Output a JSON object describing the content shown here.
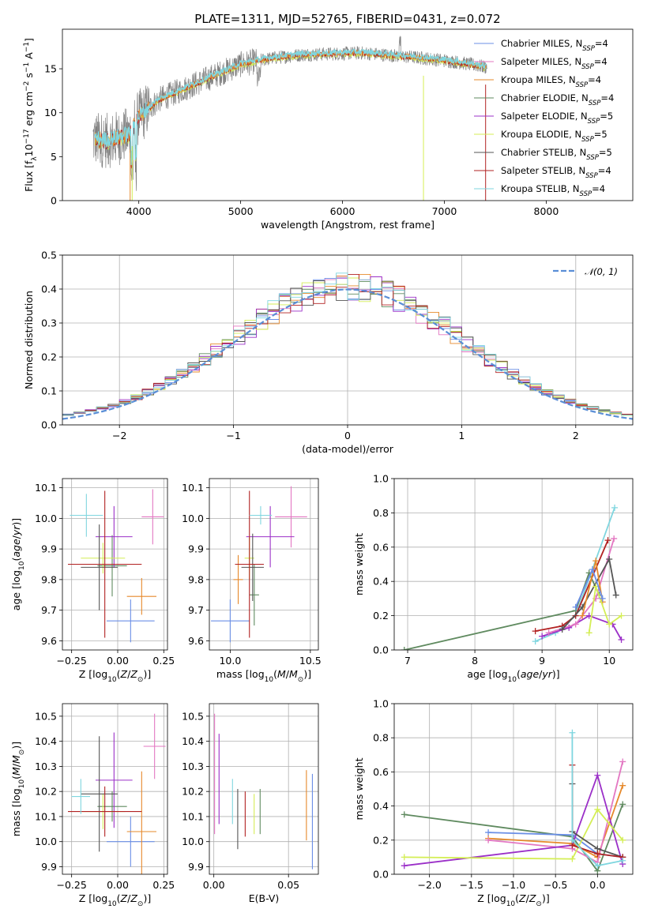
{
  "figure": {
    "title": "PLATE=1311, MJD=52765, FIBERID=0431, z=0.072"
  },
  "colors": {
    "chabrier_miles": "#6b8fe6",
    "salpeter_miles": "#e377c2",
    "kroupa_miles": "#e6892b",
    "chabrier_elodie": "#5f8a5f",
    "salpeter_elodie": "#9b30c8",
    "kroupa_elodie": "#d4ee55",
    "chabrier_stelib": "#555555",
    "salpeter_stelib": "#b22222",
    "kroupa_stelib": "#7fd6df",
    "normal_curve": "#5a8ed6"
  },
  "legend_spectrum": [
    {
      "label": "Chabrier MILES, N",
      "sub": "SSP",
      "suffix": "=4",
      "color_key": "chabrier_miles"
    },
    {
      "label": "Salpeter MILES, N",
      "sub": "SSP",
      "suffix": "=4",
      "color_key": "salpeter_miles"
    },
    {
      "label": "Kroupa MILES, N",
      "sub": "SSP",
      "suffix": "=4",
      "color_key": "kroupa_miles"
    },
    {
      "label": "Chabrier ELODIE, N",
      "sub": "SSP",
      "suffix": "=4",
      "color_key": "chabrier_elodie"
    },
    {
      "label": "Salpeter ELODIE, N",
      "sub": "SSP",
      "suffix": "=5",
      "color_key": "salpeter_elodie"
    },
    {
      "label": "Kroupa ELODIE, N",
      "sub": "SSP",
      "suffix": "=5",
      "color_key": "kroupa_elodie"
    },
    {
      "label": "Chabrier STELIB, N",
      "sub": "SSP",
      "suffix": "=5",
      "color_key": "chabrier_stelib"
    },
    {
      "label": "Salpeter STELIB, N",
      "sub": "SSP",
      "suffix": "=4",
      "color_key": "salpeter_stelib"
    },
    {
      "label": "Kroupa STELIB, N",
      "sub": "SSP",
      "suffix": "=4",
      "color_key": "kroupa_stelib"
    }
  ],
  "chart_data": [
    {
      "id": "spectrum",
      "type": "line",
      "xlabel": "wavelength [Angstrom, rest frame]",
      "ylabel": "Flux [f_λ10^-17 erg cm^-2 s^-1 A^-1]",
      "xlim": [
        3250,
        8850
      ],
      "ylim": [
        0,
        19.5
      ],
      "xticks": [
        4000,
        5000,
        6000,
        7000,
        8000
      ],
      "yticks": [
        0,
        5,
        10,
        15
      ],
      "grid": false,
      "legend": "upper right",
      "continuum_x": [
        3550,
        3700,
        3900,
        4000,
        4200,
        4500,
        4800,
        5000,
        5300,
        5600,
        5900,
        6200,
        6500,
        6800,
        7100,
        7400
      ],
      "continuum_y": [
        7.0,
        6.8,
        7.5,
        9.5,
        11.5,
        13.0,
        14.5,
        15.5,
        16.2,
        16.6,
        16.7,
        16.8,
        16.5,
        16.2,
        15.8,
        15.2
      ],
      "data_x_range": [
        3550,
        7420
      ],
      "notch_lines": [
        {
          "x": 3915,
          "color_key": "kroupa_miles"
        },
        {
          "x": 3935,
          "color_key": "kroupa_elodie"
        },
        {
          "x": 6795,
          "color_key": "kroupa_elodie"
        },
        {
          "x": 7405,
          "color_key": "salpeter_stelib"
        }
      ]
    },
    {
      "id": "residuals",
      "type": "histogram",
      "xlabel": "(data-model)/error",
      "ylabel": "Normed distribution",
      "xlim": [
        -2.5,
        2.5
      ],
      "ylim": [
        0,
        0.5
      ],
      "xticks": [
        -2,
        -1,
        0,
        1,
        2
      ],
      "yticks": [
        0.0,
        0.1,
        0.2,
        0.3,
        0.4,
        0.5
      ],
      "bin_width": 0.1,
      "grid": true,
      "legend": "upper right",
      "curve_label": "𝒩(0, 1)",
      "series_keys": [
        "chabrier_miles",
        "salpeter_miles",
        "kroupa_miles",
        "chabrier_elodie",
        "salpeter_elodie",
        "kroupa_elodie",
        "chabrier_stelib",
        "salpeter_stelib",
        "kroupa_stelib"
      ]
    },
    {
      "id": "z_age",
      "type": "errorbar",
      "xlabel": "Z [log10(Z/Z⊙)]",
      "ylabel": "age  [log10(age/yr)]",
      "xlim": [
        -0.3,
        0.27
      ],
      "ylim": [
        9.57,
        10.13
      ],
      "xticks": [
        -0.25,
        0.0,
        0.25
      ],
      "xtick_labels": [
        "−0.25",
        "0.00",
        "0.25"
      ],
      "yticks": [
        9.6,
        9.7,
        9.8,
        9.9,
        10.0,
        10.1
      ],
      "grid": true,
      "points": [
        {
          "key": "chabrier_miles",
          "x": 0.07,
          "xerr": 0.13,
          "y": 9.665,
          "yerr": 0.07
        },
        {
          "key": "salpeter_miles",
          "x": 0.19,
          "xerr": 0.06,
          "y": 10.005,
          "yerr": 0.09
        },
        {
          "key": "kroupa_miles",
          "x": 0.13,
          "xerr": 0.08,
          "y": 9.745,
          "yerr": 0.06
        },
        {
          "key": "chabrier_elodie",
          "x": -0.03,
          "xerr": 0.08,
          "y": 9.845,
          "yerr": 0.1
        },
        {
          "key": "salpeter_elodie",
          "x": -0.02,
          "xerr": 0.1,
          "y": 9.94,
          "yerr": 0.1
        },
        {
          "key": "kroupa_elodie",
          "x": -0.08,
          "xerr": 0.12,
          "y": 9.87,
          "yerr": 0.05
        },
        {
          "key": "chabrier_stelib",
          "x": -0.1,
          "xerr": 0.1,
          "y": 9.84,
          "yerr": 0.14
        },
        {
          "key": "salpeter_stelib",
          "x": -0.07,
          "xerr": 0.2,
          "y": 9.85,
          "yerr": 0.24
        },
        {
          "key": "kroupa_stelib",
          "x": -0.17,
          "xerr": 0.09,
          "y": 10.01,
          "yerr": 0.07
        }
      ]
    },
    {
      "id": "mass_age",
      "type": "errorbar",
      "xlabel": "mass [log10(M/M⊙)]",
      "ylabel": "",
      "xlim": [
        9.87,
        10.55
      ],
      "ylim": [
        9.57,
        10.13
      ],
      "xticks": [
        10.0,
        10.5
      ],
      "xtick_labels": [
        "10.0",
        "10.5"
      ],
      "yticks": [
        9.6,
        9.7,
        9.8,
        9.9,
        10.0,
        10.1
      ],
      "grid": true,
      "points": [
        {
          "key": "chabrier_miles",
          "x": 10.0,
          "xerr": 0.12,
          "y": 9.665,
          "yerr": 0.07
        },
        {
          "key": "salpeter_miles",
          "x": 10.38,
          "xerr": 0.1,
          "y": 10.005,
          "yerr": 0.1
        },
        {
          "key": "kroupa_miles",
          "x": 10.05,
          "xerr": 0.03,
          "y": 9.8,
          "yerr": 0.08
        },
        {
          "key": "chabrier_elodie",
          "x": 10.15,
          "xerr": 0.03,
          "y": 9.75,
          "yerr": 0.1
        },
        {
          "key": "salpeter_elodie",
          "x": 10.25,
          "xerr": 0.15,
          "y": 9.94,
          "yerr": 0.1
        },
        {
          "key": "kroupa_elodie",
          "x": 10.12,
          "xerr": 0.03,
          "y": 9.87,
          "yerr": 0.07
        },
        {
          "key": "chabrier_stelib",
          "x": 10.14,
          "xerr": 0.07,
          "y": 9.84,
          "yerr": 0.11
        },
        {
          "key": "salpeter_stelib",
          "x": 10.12,
          "xerr": 0.09,
          "y": 9.85,
          "yerr": 0.24
        },
        {
          "key": "kroupa_stelib",
          "x": 10.19,
          "xerr": 0.07,
          "y": 10.01,
          "yerr": 0.03
        }
      ]
    },
    {
      "id": "age_weight",
      "type": "line",
      "xlabel": "age  [log10(age/yr)]",
      "ylabel": "mass weight",
      "xlim": [
        6.8,
        10.35
      ],
      "ylim": [
        0,
        1.0
      ],
      "xticks": [
        7,
        8,
        9,
        10
      ],
      "yticks": [
        0.0,
        0.2,
        0.4,
        0.6,
        0.8,
        1.0
      ],
      "grid": true,
      "series": [
        {
          "key": "chabrier_elodie",
          "x": [
            6.95,
            9.5,
            9.7,
            9.85
          ],
          "y": [
            0.0,
            0.23,
            0.45,
            0.32
          ]
        },
        {
          "key": "kroupa_stelib",
          "x": [
            8.9,
            9.2,
            9.5,
            10.08
          ],
          "y": [
            0.05,
            0.1,
            0.2,
            0.83
          ]
        },
        {
          "key": "salpeter_stelib",
          "x": [
            8.9,
            9.3,
            9.5,
            9.98
          ],
          "y": [
            0.11,
            0.14,
            0.2,
            0.64
          ]
        },
        {
          "key": "salpeter_elodie",
          "x": [
            9.0,
            9.4,
            9.7,
            10.05,
            10.18
          ],
          "y": [
            0.08,
            0.13,
            0.2,
            0.15,
            0.06
          ]
        },
        {
          "key": "salpeter_miles",
          "x": [
            9.1,
            9.5,
            9.8,
            10.07
          ],
          "y": [
            0.1,
            0.15,
            0.3,
            0.65
          ]
        },
        {
          "key": "chabrier_stelib",
          "x": [
            9.3,
            9.6,
            10.0,
            10.1
          ],
          "y": [
            0.12,
            0.25,
            0.53,
            0.32
          ]
        },
        {
          "key": "kroupa_miles",
          "x": [
            9.6,
            9.8,
            9.9
          ],
          "y": [
            0.2,
            0.52,
            0.28
          ]
        },
        {
          "key": "kroupa_elodie",
          "x": [
            9.7,
            9.8,
            10.0,
            10.18
          ],
          "y": [
            0.1,
            0.37,
            0.15,
            0.2
          ]
        },
        {
          "key": "chabrier_miles",
          "x": [
            9.5,
            9.75,
            9.9
          ],
          "y": [
            0.25,
            0.47,
            0.3
          ]
        }
      ]
    },
    {
      "id": "z_mass",
      "type": "errorbar",
      "xlabel": "Z [log10(Z/Z⊙)]",
      "ylabel": "mass [log10(M/M⊙)]",
      "xlim": [
        -0.3,
        0.27
      ],
      "ylim": [
        9.87,
        10.55
      ],
      "xticks": [
        -0.25,
        0.0,
        0.25
      ],
      "xtick_labels": [
        "−0.25",
        "0.00",
        "0.25"
      ],
      "yticks": [
        9.9,
        10.0,
        10.1,
        10.2,
        10.3,
        10.4,
        10.5
      ],
      "grid": true,
      "points": [
        {
          "key": "chabrier_miles",
          "x": 0.07,
          "xerr": 0.13,
          "y": 10.0,
          "yerr": 0.1
        },
        {
          "key": "salpeter_miles",
          "x": 0.2,
          "xerr": 0.06,
          "y": 10.38,
          "yerr": 0.13
        },
        {
          "key": "kroupa_miles",
          "x": 0.13,
          "xerr": 0.08,
          "y": 10.04,
          "yerr": 0.24
        },
        {
          "key": "chabrier_elodie",
          "x": -0.03,
          "xerr": 0.08,
          "y": 10.14,
          "yerr": 0.06
        },
        {
          "key": "salpeter_elodie",
          "x": -0.02,
          "xerr": 0.1,
          "y": 10.245,
          "yerr": 0.19
        },
        {
          "key": "kroupa_elodie",
          "x": -0.08,
          "xerr": 0.12,
          "y": 10.12,
          "yerr": 0.07
        },
        {
          "key": "chabrier_stelib",
          "x": -0.1,
          "xerr": 0.1,
          "y": 10.19,
          "yerr": 0.23
        },
        {
          "key": "salpeter_stelib",
          "x": -0.07,
          "xerr": 0.2,
          "y": 10.12,
          "yerr": 0.1
        },
        {
          "key": "kroupa_stelib",
          "x": -0.2,
          "xerr": 0.05,
          "y": 10.18,
          "yerr": 0.07
        }
      ]
    },
    {
      "id": "ebv_mass",
      "type": "errorbar",
      "xlabel": "E(B-V)",
      "ylabel": "",
      "xlim": [
        -0.003,
        0.07
      ],
      "ylim": [
        9.87,
        10.55
      ],
      "xticks": [
        0.0,
        0.05
      ],
      "xtick_labels": [
        "0.00",
        "0.05"
      ],
      "yticks": [
        9.9,
        10.0,
        10.1,
        10.2,
        10.3,
        10.4,
        10.5
      ],
      "grid": true,
      "points": [
        {
          "key": "chabrier_miles",
          "x": 0.066,
          "xerr": 0,
          "y": 10.08,
          "yerr": 0.19
        },
        {
          "key": "salpeter_miles",
          "x": 0.0005,
          "xerr": 0,
          "y": 10.27,
          "yerr": 0.24
        },
        {
          "key": "kroupa_miles",
          "x": 0.062,
          "xerr": 0,
          "y": 10.145,
          "yerr": 0.14
        },
        {
          "key": "chabrier_elodie",
          "x": 0.031,
          "xerr": 0,
          "y": 10.12,
          "yerr": 0.09
        },
        {
          "key": "salpeter_elodie",
          "x": 0.0035,
          "xerr": 0,
          "y": 10.25,
          "yerr": 0.18
        },
        {
          "key": "kroupa_elodie",
          "x": 0.027,
          "xerr": 0,
          "y": 10.11,
          "yerr": 0.08
        },
        {
          "key": "chabrier_stelib",
          "x": 0.016,
          "xerr": 0,
          "y": 10.09,
          "yerr": 0.12
        },
        {
          "key": "salpeter_stelib",
          "x": 0.021,
          "xerr": 0,
          "y": 10.11,
          "yerr": 0.09
        },
        {
          "key": "kroupa_stelib",
          "x": 0.0125,
          "xerr": 0,
          "y": 10.16,
          "yerr": 0.09
        }
      ]
    },
    {
      "id": "z_weight",
      "type": "line",
      "xlabel": "Z [log10(Z/Z⊙)]",
      "ylabel": "mass weight",
      "xlim": [
        -2.42,
        0.42
      ],
      "ylim": [
        0,
        1.0
      ],
      "xticks": [
        -2.0,
        -1.5,
        -1.0,
        -0.5,
        0.0
      ],
      "xtick_labels": [
        "−2.0",
        "−1.5",
        "−1.0",
        "−0.5",
        "0.0"
      ],
      "yticks": [
        0.0,
        0.2,
        0.4,
        0.6,
        0.8,
        1.0
      ],
      "grid": true,
      "series": [
        {
          "key": "chabrier_elodie",
          "x": [
            -2.3,
            -0.3,
            0.0,
            0.3
          ],
          "y": [
            0.35,
            0.22,
            0.02,
            0.41
          ]
        },
        {
          "key": "chabrier_miles",
          "x": [
            -1.3,
            -0.3,
            0.0,
            0.3
          ],
          "y": [
            0.245,
            0.23,
            0.12,
            0.1
          ]
        },
        {
          "key": "kroupa_miles",
          "x": [
            -1.3,
            -0.3,
            0.0,
            0.3
          ],
          "y": [
            0.21,
            0.18,
            0.1,
            0.52
          ]
        },
        {
          "key": "salpeter_miles",
          "x": [
            -1.3,
            -0.3,
            0.0,
            0.3
          ],
          "y": [
            0.2,
            0.15,
            0.07,
            0.66
          ]
        },
        {
          "key": "salpeter_elodie",
          "x": [
            -2.3,
            -0.3,
            0.0,
            0.3
          ],
          "y": [
            0.05,
            0.17,
            0.58,
            0.06
          ]
        },
        {
          "key": "kroupa_elodie",
          "x": [
            -2.3,
            -0.3,
            0.0,
            0.3
          ],
          "y": [
            0.1,
            0.09,
            0.38,
            0.2
          ]
        },
        {
          "key": "chabrier_stelib",
          "x": [
            -0.3,
            -0.3,
            0.0,
            0.3
          ],
          "y": [
            0.53,
            0.25,
            0.15,
            0.1
          ]
        },
        {
          "key": "salpeter_stelib",
          "x": [
            -0.3,
            -0.3,
            0.0,
            0.3
          ],
          "y": [
            0.64,
            0.17,
            0.12,
            0.1
          ]
        },
        {
          "key": "kroupa_stelib",
          "x": [
            -0.3,
            -0.3,
            0.0,
            0.3
          ],
          "y": [
            0.83,
            0.2,
            0.05,
            0.08
          ]
        }
      ]
    }
  ]
}
